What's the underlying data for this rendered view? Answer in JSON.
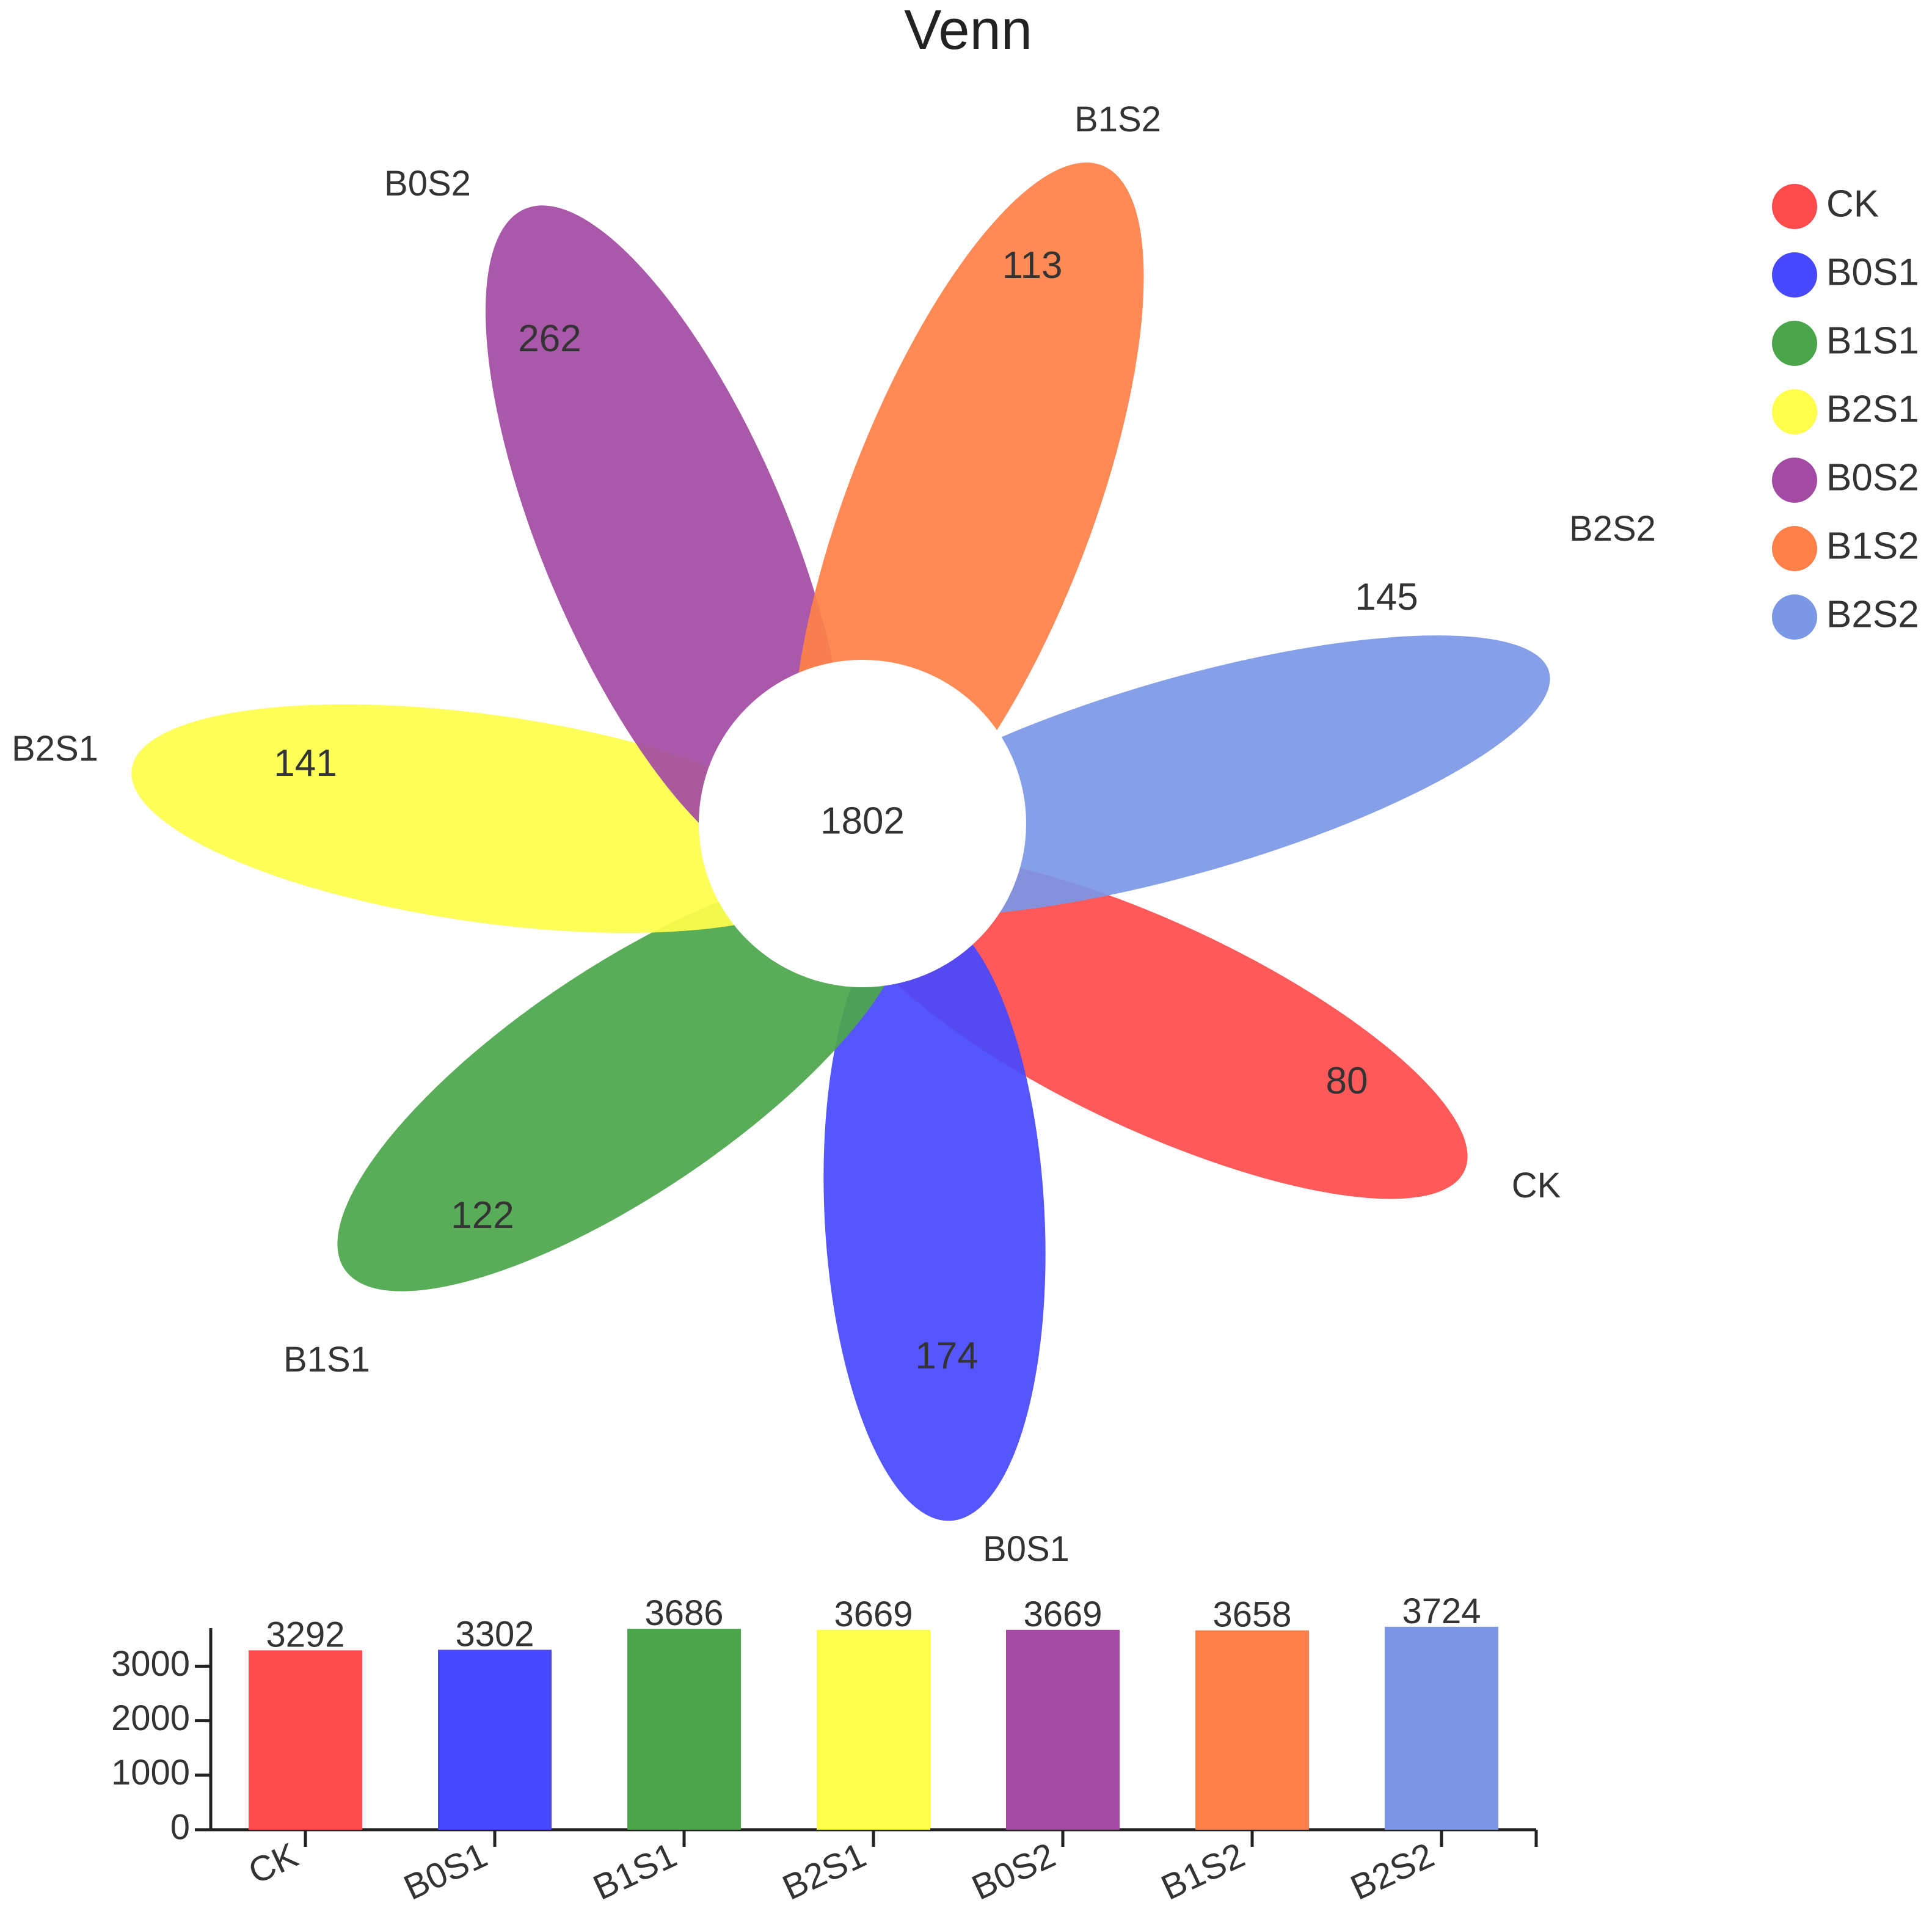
{
  "chart_data": [
    {
      "type": "venn",
      "title": "Venn",
      "sets": [
        {
          "name": "CK",
          "color": "#ff4b4b",
          "unique": 80
        },
        {
          "name": "B0S1",
          "color": "#4848ff",
          "unique": 174
        },
        {
          "name": "B1S1",
          "color": "#4ba64b",
          "unique": 122
        },
        {
          "name": "B2S1",
          "color": "#ffff4b",
          "unique": 141
        },
        {
          "name": "B0S2",
          "color": "#a34ba3",
          "unique": 262
        },
        {
          "name": "B1S2",
          "color": "#ff8048",
          "unique": 113
        },
        {
          "name": "B2S2",
          "color": "#7b97e6",
          "unique": 145
        }
      ],
      "core": 1802,
      "legend_position": "top-right"
    },
    {
      "type": "bar",
      "categories": [
        "CK",
        "B0S1",
        "B1S1",
        "B2S1",
        "B0S2",
        "B1S2",
        "B2S2"
      ],
      "values": [
        3292,
        3302,
        3686,
        3669,
        3669,
        3658,
        3724
      ],
      "colors": [
        "#ff4b4b",
        "#4848ff",
        "#4ba64b",
        "#ffff4b",
        "#a34ba3",
        "#ff8048",
        "#7b97e6"
      ],
      "ylim": [
        0,
        3700
      ],
      "yticks": [
        0,
        1000,
        2000,
        3000
      ]
    }
  ]
}
